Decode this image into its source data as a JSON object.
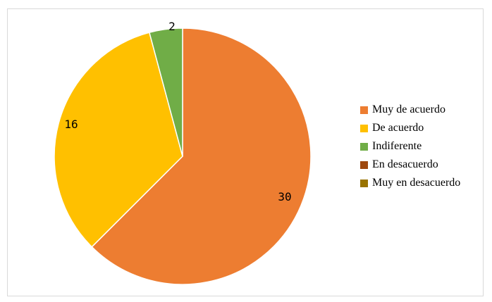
{
  "chart_data": {
    "type": "pie",
    "title": "",
    "categories": [
      "Muy de acuerdo",
      "De acuerdo",
      "Indiferente",
      "En desacuerdo",
      "Muy en desacuerdo"
    ],
    "values": [
      30,
      16,
      2,
      0,
      0
    ],
    "data_labels": [
      "30",
      "16",
      "2",
      "",
      ""
    ],
    "colors": [
      "#ED7D31",
      "#FFC000",
      "#70AD47",
      "#9E480E",
      "#997300"
    ],
    "legend_position": "right",
    "start_angle": "12 o'clock, clockwise"
  }
}
